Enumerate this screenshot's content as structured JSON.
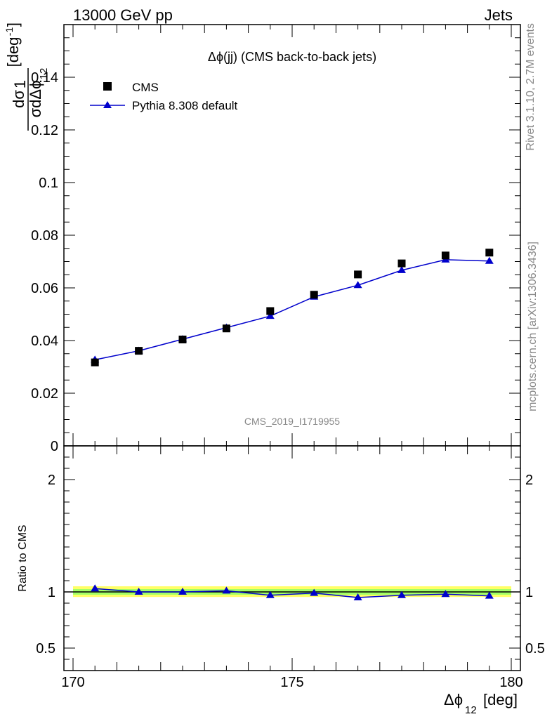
{
  "header": {
    "left": "13000 GeV pp",
    "right": "Jets"
  },
  "side_text": {
    "rivet": "Rivet 3.1.10,  2.7M events",
    "mcplots": "mcplots.cern.ch [arXiv:1306.3436]"
  },
  "colors": {
    "cms": "#000000",
    "pythia": "#0000cc",
    "band_inner": "#66ff66",
    "band_outer": "#ffff66"
  },
  "chart_data": [
    {
      "type": "scatter",
      "title": "Δϕ(jj) (CMS back-to-back jets)",
      "watermark": "CMS_2019_I1719955",
      "ylabel_num": "1",
      "ylabel_frac_num": "dσ",
      "ylabel_frac_den": "σdΔϕ",
      "ylabel_sub": "12",
      "ylabel_unit": "[deg",
      "ylabel_sup": "-1",
      "ylabel_close": "]",
      "xlim": [
        170,
        180
      ],
      "ylim": [
        0,
        0.16
      ],
      "yticks": [
        "0",
        "0.02",
        "0.04",
        "0.06",
        "0.08",
        "0.1",
        "0.12",
        "0.14"
      ],
      "ytick_values": [
        0,
        0.02,
        0.04,
        0.06,
        0.08,
        0.1,
        0.12,
        0.14
      ],
      "legend": {
        "placement": "top-left",
        "entries": [
          "CMS",
          "Pythia 8.308 default"
        ]
      },
      "x": [
        170.5,
        171.5,
        172.5,
        173.5,
        174.5,
        175.5,
        176.5,
        177.5,
        178.5,
        179.5
      ],
      "series": [
        {
          "name": "CMS",
          "marker": "square",
          "values": [
            0.0317,
            0.0361,
            0.0404,
            0.0446,
            0.0512,
            0.0574,
            0.0651,
            0.0693,
            0.0723,
            0.0734
          ]
        },
        {
          "name": "Pythia 8.308 default",
          "marker": "triangle",
          "values": [
            0.0327,
            0.0361,
            0.0405,
            0.0449,
            0.0493,
            0.0566,
            0.061,
            0.0667,
            0.0707,
            0.0702
          ]
        }
      ]
    },
    {
      "type": "line",
      "ylabel": "Ratio to CMS",
      "xlabel_main": "Δϕ",
      "xlabel_sub": "12",
      "xlabel_unit": "[deg]",
      "xlim": [
        170,
        180
      ],
      "ylim": [
        0.3,
        2.3
      ],
      "xticks": [
        "170",
        "175",
        "180"
      ],
      "xtick_values": [
        170,
        175,
        180
      ],
      "yticks": [
        "0.5",
        "1",
        "2"
      ],
      "ytick_values": [
        0.5,
        1,
        2
      ],
      "band": {
        "inner": [
          0.975,
          1.025
        ],
        "outer": [
          0.955,
          1.05
        ]
      },
      "x": [
        170.5,
        171.5,
        172.5,
        173.5,
        174.5,
        175.5,
        176.5,
        177.5,
        178.5,
        179.5
      ],
      "series": [
        {
          "name": "Pythia 8.308 default",
          "values": [
            1.03,
            1.0,
            1.0,
            1.01,
            0.97,
            0.99,
            0.95,
            0.97,
            0.98,
            0.965
          ]
        }
      ]
    }
  ]
}
